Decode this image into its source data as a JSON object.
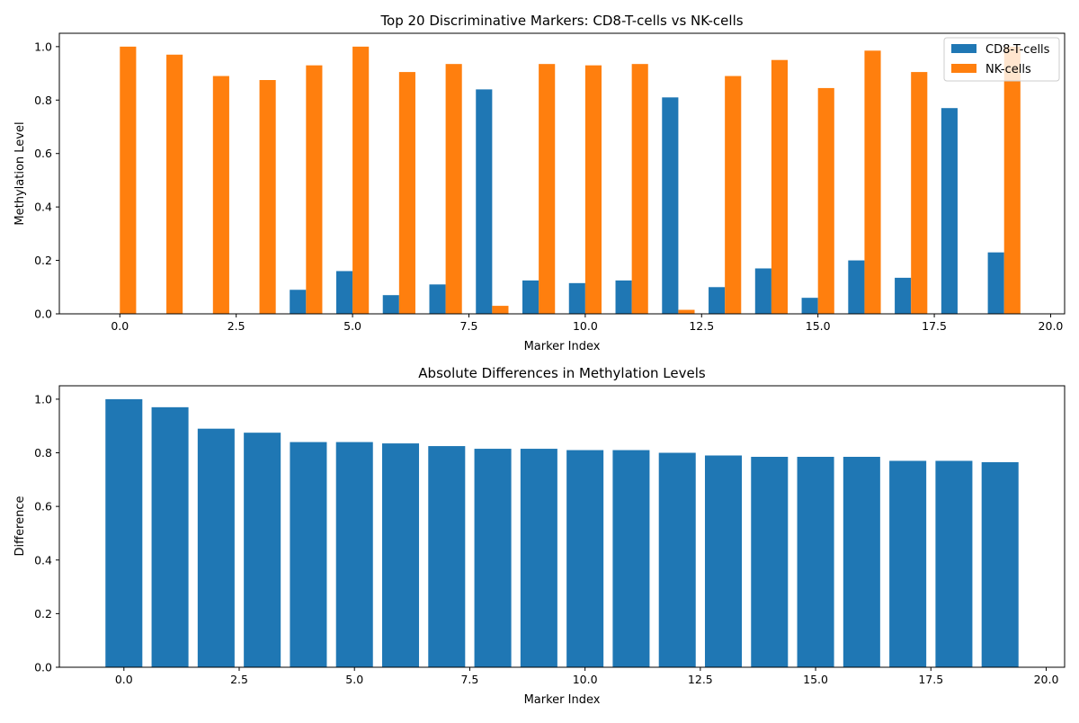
{
  "chart_data": [
    {
      "type": "bar",
      "title": "Top 20 Discriminative Markers: CD8-T-cells vs NK-cells",
      "xlabel": "Marker Index",
      "ylabel": "Methylation Level",
      "xlim": [
        -1.3,
        20.3
      ],
      "ylim": [
        0,
        1.05
      ],
      "xticks": [
        0.0,
        2.5,
        5.0,
        7.5,
        10.0,
        12.5,
        15.0,
        17.5,
        20.0
      ],
      "xtick_labels": [
        "0.0",
        "2.5",
        "5.0",
        "7.5",
        "10.0",
        "12.5",
        "15.0",
        "17.5",
        "20.0"
      ],
      "yticks": [
        0.0,
        0.2,
        0.4,
        0.6,
        0.8,
        1.0
      ],
      "ytick_labels": [
        "0.0",
        "0.2",
        "0.4",
        "0.6",
        "0.8",
        "1.0"
      ],
      "grid": false,
      "legend": "top-right",
      "x": [
        0,
        1,
        2,
        3,
        4,
        5,
        6,
        7,
        8,
        9,
        10,
        11,
        12,
        13,
        14,
        15,
        16,
        17,
        18,
        19
      ],
      "series": [
        {
          "name": "CD8-T-cells",
          "color": "#1f77b4",
          "values": [
            0.0,
            0.0,
            0.0,
            0.0,
            0.09,
            0.16,
            0.07,
            0.11,
            0.84,
            0.125,
            0.115,
            0.125,
            0.81,
            0.1,
            0.17,
            0.06,
            0.2,
            0.135,
            0.77,
            0.23
          ]
        },
        {
          "name": "NK-cells",
          "color": "#ff7f0e",
          "values": [
            1.0,
            0.97,
            0.89,
            0.875,
            0.93,
            1.0,
            0.905,
            0.935,
            0.03,
            0.935,
            0.93,
            0.935,
            0.015,
            0.89,
            0.95,
            0.845,
            0.985,
            0.905,
            0.0,
            1.0
          ]
        }
      ]
    },
    {
      "type": "bar",
      "title": "Absolute Differences in Methylation Levels",
      "xlabel": "Marker Index",
      "ylabel": "Difference",
      "xlim": [
        -1.4,
        20.4
      ],
      "ylim": [
        0,
        1.05
      ],
      "xticks": [
        0.0,
        2.5,
        5.0,
        7.5,
        10.0,
        12.5,
        15.0,
        17.5,
        20.0
      ],
      "xtick_labels": [
        "0.0",
        "2.5",
        "5.0",
        "7.5",
        "10.0",
        "12.5",
        "15.0",
        "17.5",
        "20.0"
      ],
      "yticks": [
        0.0,
        0.2,
        0.4,
        0.6,
        0.8,
        1.0
      ],
      "ytick_labels": [
        "0.0",
        "0.2",
        "0.4",
        "0.6",
        "0.8",
        "1.0"
      ],
      "grid": false,
      "x": [
        0,
        1,
        2,
        3,
        4,
        5,
        6,
        7,
        8,
        9,
        10,
        11,
        12,
        13,
        14,
        15,
        16,
        17,
        18,
        19
      ],
      "series": [
        {
          "color": "#1f77b4",
          "values": [
            1.0,
            0.97,
            0.89,
            0.875,
            0.84,
            0.84,
            0.835,
            0.825,
            0.815,
            0.815,
            0.81,
            0.81,
            0.8,
            0.79,
            0.785,
            0.785,
            0.785,
            0.77,
            0.77,
            0.765
          ]
        }
      ]
    }
  ]
}
